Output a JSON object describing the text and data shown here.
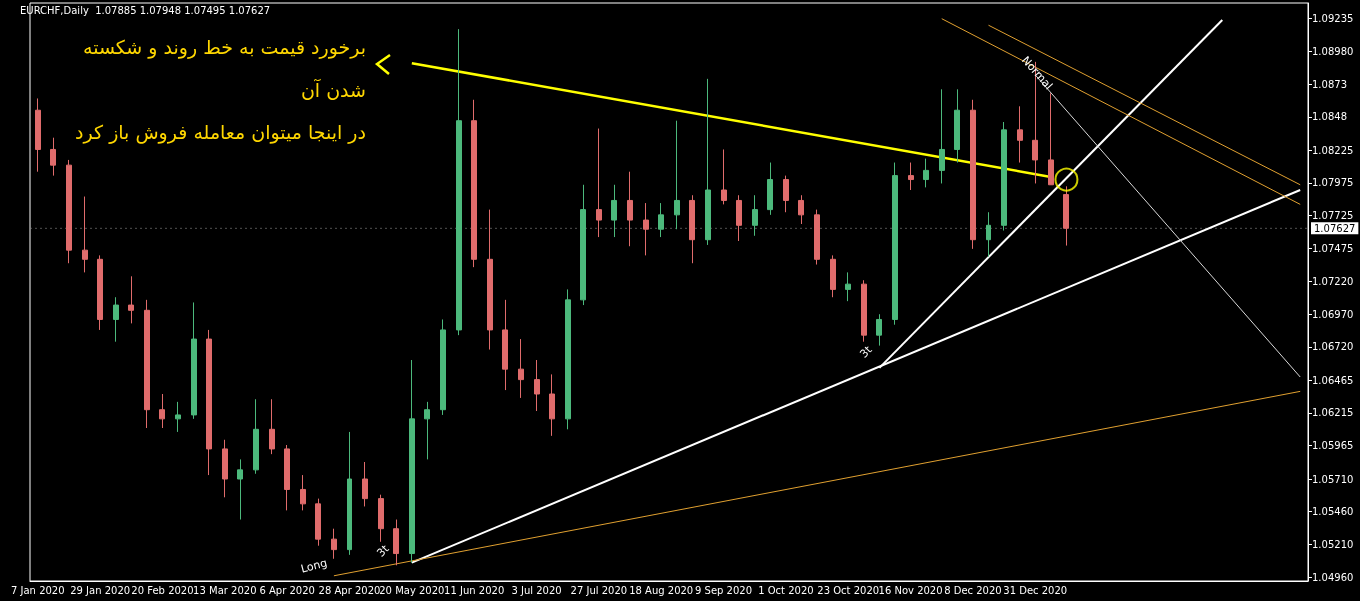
{
  "chart_data": {
    "type": "candlestick",
    "title": "EURCHF,Daily  1.07885 1.07948 1.07495 1.07627",
    "categories": [
      "7 Jan 2020",
      null,
      null,
      null,
      "29 Jan 2020",
      null,
      null,
      null,
      "20 Feb 2020",
      null,
      null,
      null,
      "13 Mar 2020",
      null,
      null,
      null,
      "6 Apr 2020",
      null,
      null,
      null,
      "28 Apr 2020",
      null,
      null,
      null,
      "20 May 2020",
      null,
      null,
      null,
      "11 Jun 2020",
      null,
      null,
      null,
      "3 Jul 2020",
      null,
      null,
      null,
      "27 Jul 2020",
      null,
      null,
      null,
      "18 Aug 2020",
      null,
      null,
      null,
      "9 Sep 2020",
      null,
      null,
      null,
      "1 Oct 2020",
      null,
      null,
      null,
      "23 Oct 2020",
      null,
      null,
      null,
      "16 Nov 2020",
      null,
      null,
      null,
      "8 Dec 2020",
      null,
      null,
      null,
      "31 Dec 2020",
      null,
      null,
      null,
      null,
      null,
      null,
      null,
      null,
      null,
      null,
      null,
      null,
      null,
      null,
      null,
      null,
      null
    ],
    "colors": [
      "#e06c6c",
      "#e06c6c",
      "#e06c6c",
      "#e06c6c",
      "#e06c6c",
      "#4cb97c",
      "#e06c6c",
      "#e06c6c",
      "#e06c6c",
      "#4cb97c",
      "#4cb97c",
      "#e06c6c",
      "#e06c6c",
      "#4cb97c",
      "#4cb97c",
      "#e06c6c",
      "#e06c6c",
      "#e06c6c",
      "#e06c6c",
      "#e06c6c",
      "#4cb97c",
      "#e06c6c",
      "#e06c6c",
      "#e06c6c",
      "#4cb97c",
      "#4cb97c",
      "#4cb97c",
      "#4cb97c",
      "#e06c6c",
      "#e06c6c",
      "#e06c6c",
      "#e06c6c",
      "#e06c6c",
      "#e06c6c",
      "#4cb97c",
      "#4cb97c",
      "#e06c6c",
      "#4cb97c",
      "#e06c6c",
      "#e06c6c",
      "#4cb97c",
      "#4cb97c",
      "#e06c6c",
      "#4cb97c",
      "#e06c6c",
      "#e06c6c",
      "#4cb97c",
      "#4cb97c",
      "#e06c6c",
      "#e06c6c",
      "#e06c6c",
      "#e06c6c",
      "#4cb97c",
      "#e06c6c",
      "#4cb97c",
      "#4cb97c",
      "#e06c6c",
      "#4cb97c",
      "#4cb97c",
      "#4cb97c",
      "#e06c6c",
      "#4cb97c",
      "#4cb97c",
      "#e06c6c",
      "#e06c6c",
      "#e06c6c",
      "#e06c6c",
      null,
      null,
      null,
      null,
      null,
      null,
      null,
      null,
      null,
      null,
      null,
      null,
      null,
      null,
      null
    ],
    "ohlc": [
      [
        1.0853,
        1.0862,
        1.0806,
        1.0823
      ],
      [
        1.0823,
        1.0832,
        1.0803,
        1.0811
      ],
      [
        1.0811,
        1.0815,
        1.0736,
        1.0746
      ],
      [
        1.0746,
        1.0787,
        1.0729,
        1.0739
      ],
      [
        1.0739,
        1.0742,
        1.0685,
        1.0693
      ],
      [
        1.0693,
        1.071,
        1.0676,
        1.0704
      ],
      [
        1.0704,
        1.0726,
        1.069,
        1.07
      ],
      [
        1.07,
        1.0708,
        1.061,
        1.0624
      ],
      [
        1.0624,
        1.0636,
        1.061,
        1.0617
      ],
      [
        1.0617,
        1.063,
        1.0607,
        1.062
      ],
      [
        1.062,
        1.0706,
        1.0617,
        1.0678
      ],
      [
        1.0678,
        1.0685,
        1.0574,
        1.0594
      ],
      [
        1.0594,
        1.0601,
        1.0557,
        1.0571
      ],
      [
        1.0571,
        1.0586,
        1.054,
        1.0578
      ],
      [
        1.0578,
        1.0632,
        1.0575,
        1.0609
      ],
      [
        1.0609,
        1.0632,
        1.059,
        1.0594
      ],
      [
        1.0594,
        1.0597,
        1.0547,
        1.0563
      ],
      [
        1.0563,
        1.0574,
        1.0547,
        1.0552
      ],
      [
        1.0552,
        1.0556,
        1.052,
        1.0525
      ],
      [
        1.0525,
        1.0533,
        1.051,
        1.0517
      ],
      [
        1.0517,
        1.0607,
        1.0513,
        1.0571
      ],
      [
        1.0571,
        1.0584,
        1.055,
        1.0556
      ],
      [
        1.0556,
        1.0559,
        1.0523,
        1.0533
      ],
      [
        1.0533,
        1.054,
        1.0505,
        1.0514
      ],
      [
        1.0514,
        1.0662,
        1.0507,
        1.0617
      ],
      [
        1.0617,
        1.063,
        1.0586,
        1.0624
      ],
      [
        1.0624,
        1.0693,
        1.062,
        1.0685
      ],
      [
        1.0685,
        1.0915,
        1.0681,
        1.0845
      ],
      [
        1.0845,
        1.0861,
        1.0733,
        1.0739
      ],
      [
        1.0739,
        1.0777,
        1.067,
        1.0685
      ],
      [
        1.0685,
        1.0708,
        1.0639,
        1.0655
      ],
      [
        1.0655,
        1.0678,
        1.0633,
        1.0647
      ],
      [
        1.0647,
        1.0662,
        1.0623,
        1.0636
      ],
      [
        1.0636,
        1.0651,
        1.0604,
        1.0617
      ],
      [
        1.0617,
        1.0716,
        1.0609,
        1.0708
      ],
      [
        1.0708,
        1.0796,
        1.0704,
        1.0777
      ],
      [
        1.0777,
        1.0839,
        1.0756,
        1.0769
      ],
      [
        1.0769,
        1.0796,
        1.0756,
        1.0784
      ],
      [
        1.0784,
        1.0806,
        1.0749,
        1.0769
      ],
      [
        1.0769,
        1.0782,
        1.0742,
        1.0762
      ],
      [
        1.0762,
        1.0782,
        1.0756,
        1.0773
      ],
      [
        1.0773,
        1.0845,
        1.0762,
        1.0784
      ],
      [
        1.0784,
        1.0788,
        1.0736,
        1.0754
      ],
      [
        1.0754,
        1.0877,
        1.075,
        1.0792
      ],
      [
        1.0792,
        1.0823,
        1.0781,
        1.0784
      ],
      [
        1.0784,
        1.0788,
        1.0753,
        1.0765
      ],
      [
        1.0765,
        1.0788,
        1.0757,
        1.0777
      ],
      [
        1.0777,
        1.0813,
        1.0773,
        1.08
      ],
      [
        1.08,
        1.0803,
        1.0775,
        1.0784
      ],
      [
        1.0784,
        1.0788,
        1.0766,
        1.0773
      ],
      [
        1.0773,
        1.0777,
        1.0735,
        1.0739
      ],
      [
        1.0739,
        1.0742,
        1.071,
        1.0716
      ],
      [
        1.0716,
        1.0729,
        1.0707,
        1.072
      ],
      [
        1.072,
        1.0723,
        1.0676,
        1.0681
      ],
      [
        1.0681,
        1.0697,
        1.0673,
        1.0693
      ],
      [
        1.0693,
        1.0813,
        1.0689,
        1.0803
      ],
      [
        1.0803,
        1.0813,
        1.0792,
        1.08
      ],
      [
        1.08,
        1.0816,
        1.0794,
        1.0807
      ],
      [
        1.0807,
        1.0869,
        1.0797,
        1.0823
      ],
      [
        1.0823,
        1.0869,
        1.0813,
        1.0853
      ],
      [
        1.0853,
        1.0861,
        1.0747,
        1.0754
      ],
      [
        1.0754,
        1.0775,
        1.0741,
        1.0765
      ],
      [
        1.0765,
        1.0844,
        1.0761,
        1.0838
      ],
      [
        1.0838,
        1.0856,
        1.0813,
        1.083
      ],
      [
        1.083,
        1.089,
        1.0797,
        1.0815
      ],
      [
        1.0815,
        1.0866,
        1.0796,
        1.0796
      ],
      [
        1.07885,
        1.07948,
        1.07495,
        1.07627
      ],
      null,
      null,
      null,
      null,
      null,
      null,
      null,
      null,
      null,
      null,
      null,
      null,
      null,
      null,
      null
    ],
    "series": [
      {
        "type": "line",
        "color": "#ffff00",
        "values": [
          null,
          null,
          null,
          null,
          null,
          null,
          null,
          null,
          null,
          null,
          null,
          null,
          null,
          null,
          null,
          null,
          null,
          null,
          null,
          null,
          null,
          null,
          null,
          null,
          1.0889,
          null,
          null,
          null,
          null,
          null,
          null,
          null,
          null,
          null,
          null,
          null,
          null,
          null,
          null,
          null,
          null,
          null,
          null,
          null,
          null,
          null,
          null,
          null,
          null,
          null,
          null,
          null,
          null,
          null,
          null,
          null,
          null,
          null,
          null,
          null,
          null,
          null,
          null,
          null,
          null,
          1.0802,
          null,
          null,
          null,
          null,
          null,
          null,
          null,
          null,
          null,
          null,
          null,
          null,
          null,
          null,
          null,
          null
        ]
      },
      {
        "type": "line",
        "color": "#ffffff",
        "values": [
          null,
          null,
          null,
          null,
          null,
          null,
          null,
          null,
          null,
          null,
          null,
          null,
          null,
          null,
          null,
          null,
          null,
          null,
          null,
          null,
          null,
          null,
          null,
          null,
          null,
          null,
          null,
          null,
          null,
          null,
          null,
          null,
          null,
          null,
          null,
          null,
          null,
          null,
          null,
          null,
          null,
          null,
          null,
          null,
          null,
          null,
          null,
          null,
          null,
          null,
          null,
          null,
          null,
          null,
          1.0656,
          null,
          null,
          null,
          null,
          null,
          null,
          null,
          null,
          null,
          null,
          null,
          null,
          null,
          null,
          null,
          null,
          null,
          null,
          null,
          null,
          null,
          1.0922,
          null,
          null,
          null,
          null,
          null
        ]
      },
      {
        "type": "line",
        "color": "#ffffff",
        "values": [
          null,
          null,
          null,
          null,
          null,
          null,
          null,
          null,
          null,
          null,
          null,
          null,
          null,
          null,
          null,
          null,
          null,
          null,
          null,
          null,
          null,
          null,
          null,
          null,
          1.0507,
          null,
          null,
          null,
          null,
          null,
          null,
          null,
          null,
          null,
          null,
          null,
          null,
          null,
          null,
          null,
          null,
          null,
          null,
          null,
          null,
          null,
          null,
          null,
          null,
          null,
          null,
          null,
          null,
          null,
          null,
          null,
          null,
          null,
          null,
          null,
          null,
          null,
          null,
          null,
          null,
          null,
          null,
          null,
          null,
          null,
          null,
          null,
          null,
          null,
          null,
          null,
          null,
          null,
          null,
          null,
          null,
          1.0792
        ]
      },
      {
        "type": "line",
        "color": "#d9d9d9",
        "values": [
          null,
          null,
          null,
          null,
          null,
          null,
          null,
          null,
          null,
          null,
          null,
          null,
          null,
          null,
          null,
          null,
          null,
          null,
          null,
          null,
          null,
          null,
          null,
          null,
          null,
          null,
          null,
          null,
          null,
          null,
          null,
          null,
          null,
          null,
          null,
          null,
          null,
          null,
          null,
          null,
          null,
          null,
          null,
          null,
          null,
          null,
          null,
          null,
          null,
          null,
          null,
          null,
          null,
          null,
          null,
          null,
          null,
          null,
          null,
          null,
          null,
          null,
          null,
          null,
          1.088,
          null,
          null,
          null,
          null,
          null,
          null,
          null,
          null,
          null,
          null,
          null,
          null,
          null,
          null,
          null,
          null,
          1.0649
        ]
      },
      {
        "type": "line",
        "color": "#e0a030",
        "values": [
          null,
          null,
          null,
          null,
          null,
          null,
          null,
          null,
          null,
          null,
          null,
          null,
          null,
          null,
          null,
          null,
          null,
          null,
          null,
          1.0497,
          null,
          null,
          null,
          null,
          null,
          null,
          null,
          null,
          null,
          null,
          null,
          null,
          null,
          null,
          null,
          null,
          null,
          null,
          null,
          null,
          null,
          null,
          null,
          null,
          null,
          null,
          null,
          null,
          null,
          null,
          null,
          null,
          null,
          null,
          null,
          null,
          null,
          null,
          null,
          null,
          null,
          null,
          null,
          null,
          null,
          null,
          null,
          null,
          null,
          null,
          null,
          null,
          null,
          null,
          null,
          null,
          null,
          null,
          null,
          null,
          null,
          1.0638
        ]
      },
      {
        "type": "line",
        "color": "#e0a030",
        "values": [
          null,
          null,
          null,
          null,
          null,
          null,
          null,
          null,
          null,
          null,
          null,
          null,
          null,
          null,
          null,
          null,
          null,
          null,
          null,
          null,
          null,
          null,
          null,
          null,
          null,
          null,
          null,
          null,
          null,
          null,
          null,
          null,
          null,
          null,
          null,
          null,
          null,
          null,
          null,
          null,
          null,
          null,
          null,
          null,
          null,
          null,
          null,
          null,
          null,
          null,
          null,
          null,
          null,
          null,
          null,
          null,
          null,
          null,
          1.0923,
          null,
          null,
          null,
          null,
          null,
          null,
          null,
          null,
          null,
          null,
          null,
          null,
          null,
          null,
          null,
          null,
          null,
          null,
          null,
          null,
          null,
          null,
          1.0781
        ]
      },
      {
        "type": "line",
        "color": "#e0a030",
        "values": [
          null,
          null,
          null,
          null,
          null,
          null,
          null,
          null,
          null,
          null,
          null,
          null,
          null,
          null,
          null,
          null,
          null,
          null,
          null,
          null,
          null,
          null,
          null,
          null,
          null,
          null,
          null,
          null,
          null,
          null,
          null,
          null,
          null,
          null,
          null,
          null,
          null,
          null,
          null,
          null,
          null,
          null,
          null,
          null,
          null,
          null,
          null,
          null,
          null,
          null,
          null,
          null,
          null,
          null,
          null,
          null,
          null,
          null,
          null,
          null,
          null,
          1.0918,
          null,
          null,
          null,
          null,
          null,
          null,
          null,
          null,
          null,
          null,
          null,
          null,
          null,
          null,
          null,
          null,
          null,
          null,
          null,
          1.0796
        ]
      },
      {
        "type": "scatter",
        "color": "#ffff00",
        "marker": "circle",
        "values": [
          null,
          null,
          null,
          null,
          null,
          null,
          null,
          null,
          null,
          null,
          null,
          null,
          null,
          null,
          null,
          null,
          null,
          null,
          null,
          null,
          null,
          null,
          null,
          null,
          null,
          null,
          null,
          null,
          null,
          null,
          null,
          null,
          null,
          null,
          null,
          null,
          null,
          null,
          null,
          null,
          null,
          null,
          null,
          null,
          null,
          null,
          null,
          null,
          null,
          null,
          null,
          null,
          null,
          null,
          null,
          null,
          null,
          null,
          null,
          null,
          null,
          null,
          null,
          null,
          null,
          null,
          1.08,
          null,
          null,
          null,
          null,
          null,
          null,
          null,
          null,
          null,
          null,
          null,
          null,
          null,
          null,
          null
        ]
      }
    ],
    "ylim": [
      1.0493,
      1.0935
    ],
    "yticks": [
      1.09235,
      {
        "value": 1.0898,
        "label": "1.08980"
      },
      1.0873,
      1.0848,
      1.08225,
      1.07975,
      1.07725,
      1.07475,
      {
        "value": 1.0722,
        "label": "1.07220"
      },
      {
        "value": 1.0697,
        "label": "1.06970"
      },
      {
        "value": 1.0672,
        "label": "1.06720"
      },
      1.06465,
      1.06215,
      1.05965,
      {
        "value": 1.0571,
        "label": "1.05710"
      },
      {
        "value": 1.0546,
        "label": "1.05460"
      },
      {
        "value": 1.0521,
        "label": "1.05210"
      },
      {
        "value": 1.0496,
        "label": "1.04960"
      }
    ],
    "ref_lines": [
      {
        "axis": "y",
        "value": 1.07627,
        "label": "1.07627"
      }
    ],
    "annotations": [
      "برخورد قیمت به خط روند و شکسته",
      "شدن آن",
      "در اینجا میتوان معامله فروش باز کرد",
      "Long",
      "3t",
      "3t",
      "Normal"
    ],
    "grid": false
  }
}
